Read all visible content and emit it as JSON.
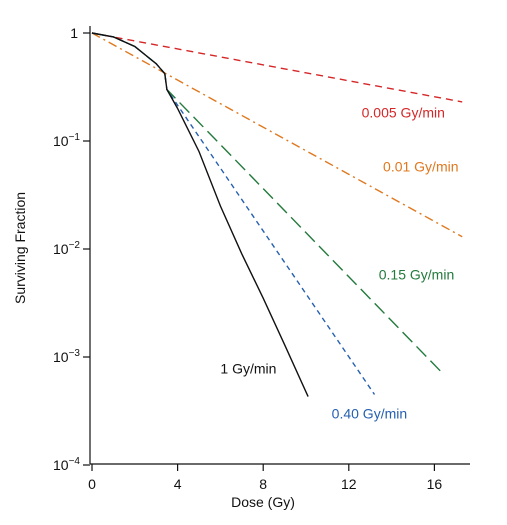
{
  "chart_data": {
    "type": "line",
    "xlabel": "Dose (Gy)",
    "ylabel": "Surviving Fraction",
    "xlim": [
      -1,
      18
    ],
    "ylim": [
      0.0001,
      1.2
    ],
    "yscale": "log",
    "grid": false,
    "x_ticks": [
      {
        "value": 0,
        "label": "0"
      },
      {
        "value": 4,
        "label": "4"
      },
      {
        "value": 8,
        "label": "8"
      },
      {
        "value": 12,
        "label": "12"
      },
      {
        "value": 16,
        "label": "16"
      }
    ],
    "y_ticks": [
      {
        "value": 1,
        "base": "1",
        "exp": ""
      },
      {
        "value": 0.1,
        "base": "10",
        "exp": "−1"
      },
      {
        "value": 0.01,
        "base": "10",
        "exp": "−2"
      },
      {
        "value": 0.001,
        "base": "10",
        "exp": "−3"
      },
      {
        "value": 0.0001,
        "base": "10",
        "exp": "−4"
      }
    ],
    "series": [
      {
        "name": "0.005 Gy/min",
        "color": "#d62728",
        "dash": "dashed",
        "points": [
          [
            0,
            1
          ],
          [
            17.3,
            0.23
          ]
        ],
        "label_pos": [
          12.6,
          0.165
        ]
      },
      {
        "name": "0.01 Gy/min",
        "color": "#e0781e",
        "dash": "dashdot",
        "points": [
          [
            0,
            1
          ],
          [
            17.3,
            0.013
          ]
        ],
        "label_pos": [
          13.6,
          0.052
        ]
      },
      {
        "name": "0.15 Gy/min",
        "color": "#237a3c",
        "dash": "longdash",
        "points": [
          [
            0,
            1
          ],
          [
            1,
            0.92
          ],
          [
            2,
            0.75
          ],
          [
            3,
            0.52
          ],
          [
            3.4,
            0.42
          ],
          [
            3.5,
            0.3
          ],
          [
            16.4,
            0.0007
          ]
        ],
        "label_pos": [
          13.4,
          0.0052
        ]
      },
      {
        "name": "0.40 Gy/min",
        "color": "#2660b0",
        "dash": "shortdash",
        "points": [
          [
            0,
            1
          ],
          [
            1,
            0.92
          ],
          [
            2,
            0.75
          ],
          [
            3,
            0.52
          ],
          [
            3.4,
            0.42
          ],
          [
            3.5,
            0.3
          ],
          [
            13.2,
            0.00045
          ]
        ],
        "label_pos": [
          11.2,
          0.00027
        ]
      },
      {
        "name": "1 Gy/min",
        "color": "#111111",
        "dash": "solid",
        "points": [
          [
            0,
            1
          ],
          [
            1,
            0.92
          ],
          [
            2,
            0.75
          ],
          [
            3,
            0.52
          ],
          [
            3.4,
            0.42
          ],
          [
            3.5,
            0.3
          ],
          [
            4,
            0.2
          ],
          [
            5,
            0.08
          ],
          [
            6,
            0.025
          ],
          [
            7,
            0.009
          ],
          [
            8,
            0.0035
          ],
          [
            9,
            0.0013
          ],
          [
            10.1,
            0.00043
          ]
        ],
        "label_pos": [
          6.0,
          0.0007
        ]
      }
    ]
  }
}
